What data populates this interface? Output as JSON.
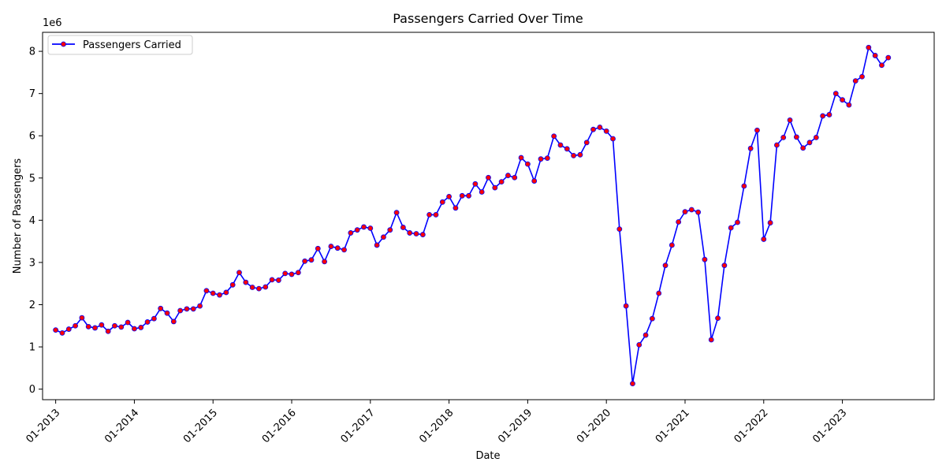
{
  "chart_data": {
    "type": "line",
    "title": "Passengers Carried Over Time",
    "xlabel": "Date",
    "ylabel": "Number of Passengers",
    "y_multiplier_label": "1e6",
    "y_ticks": [
      0,
      1,
      2,
      3,
      4,
      5,
      6,
      7,
      8
    ],
    "ylim": [
      -0.25,
      8.45
    ],
    "x_tick_labels": [
      "01-2013",
      "01-2014",
      "01-2015",
      "01-2016",
      "01-2017",
      "01-2018",
      "01-2019",
      "01-2020",
      "01-2021",
      "01-2022",
      "01-2023"
    ],
    "x_range": [
      "11-2012",
      "03-2024"
    ],
    "grid": false,
    "legend_position": "top-left",
    "line_color": "#0000ff",
    "marker_color": "#ff0000",
    "series": [
      {
        "name": "Passengers Carried",
        "x": [
          "01-2013",
          "02-2013",
          "03-2013",
          "04-2013",
          "05-2013",
          "06-2013",
          "07-2013",
          "08-2013",
          "09-2013",
          "10-2013",
          "11-2013",
          "12-2013",
          "01-2014",
          "02-2014",
          "03-2014",
          "04-2014",
          "05-2014",
          "06-2014",
          "07-2014",
          "08-2014",
          "09-2014",
          "10-2014",
          "11-2014",
          "12-2014",
          "01-2015",
          "02-2015",
          "03-2015",
          "04-2015",
          "05-2015",
          "06-2015",
          "07-2015",
          "08-2015",
          "09-2015",
          "10-2015",
          "11-2015",
          "12-2015",
          "01-2016",
          "02-2016",
          "03-2016",
          "04-2016",
          "05-2016",
          "06-2016",
          "07-2016",
          "08-2016",
          "09-2016",
          "10-2016",
          "11-2016",
          "12-2016",
          "01-2017",
          "02-2017",
          "03-2017",
          "04-2017",
          "05-2017",
          "06-2017",
          "07-2017",
          "08-2017",
          "09-2017",
          "10-2017",
          "11-2017",
          "12-2017",
          "01-2018",
          "02-2018",
          "03-2018",
          "04-2018",
          "05-2018",
          "06-2018",
          "07-2018",
          "08-2018",
          "09-2018",
          "10-2018",
          "11-2018",
          "12-2018",
          "01-2019",
          "02-2019",
          "03-2019",
          "04-2019",
          "05-2019",
          "06-2019",
          "07-2019",
          "08-2019",
          "09-2019",
          "10-2019",
          "11-2019",
          "12-2019",
          "01-2020",
          "02-2020",
          "03-2020",
          "04-2020",
          "05-2020",
          "06-2020",
          "07-2020",
          "08-2020",
          "09-2020",
          "10-2020",
          "11-2020",
          "12-2020",
          "01-2021",
          "02-2021",
          "03-2021",
          "04-2021",
          "05-2021",
          "06-2021",
          "07-2021",
          "08-2021",
          "09-2021",
          "10-2021",
          "11-2021",
          "12-2021",
          "01-2022",
          "02-2022",
          "03-2022",
          "04-2022",
          "05-2022",
          "06-2022",
          "07-2022",
          "08-2022",
          "09-2022",
          "10-2022",
          "11-2022",
          "12-2022",
          "01-2023",
          "02-2023",
          "03-2023",
          "04-2023",
          "05-2023",
          "06-2023",
          "07-2023",
          "08-2023"
        ],
        "values": [
          1.4,
          1.33,
          1.42,
          1.5,
          1.69,
          1.48,
          1.45,
          1.52,
          1.37,
          1.5,
          1.47,
          1.58,
          1.43,
          1.46,
          1.59,
          1.67,
          1.91,
          1.8,
          1.6,
          1.86,
          1.9,
          1.9,
          1.97,
          2.33,
          2.27,
          2.23,
          2.29,
          2.47,
          2.76,
          2.53,
          2.41,
          2.38,
          2.42,
          2.59,
          2.58,
          2.74,
          2.72,
          2.76,
          3.03,
          3.06,
          3.33,
          3.02,
          3.38,
          3.34,
          3.3,
          3.7,
          3.77,
          3.84,
          3.81,
          3.41,
          3.6,
          3.77,
          4.18,
          3.83,
          3.7,
          3.68,
          3.66,
          4.13,
          4.13,
          4.43,
          4.56,
          4.29,
          4.58,
          4.58,
          4.86,
          4.67,
          5.01,
          4.77,
          4.91,
          5.06,
          5.01,
          5.48,
          5.33,
          4.93,
          5.45,
          5.47,
          5.99,
          5.78,
          5.69,
          5.53,
          5.55,
          5.84,
          6.15,
          6.2,
          6.11,
          5.93,
          3.79,
          1.97,
          0.13,
          1.05,
          1.28,
          1.67,
          2.27,
          2.93,
          3.41,
          3.96,
          4.2,
          4.25,
          4.19,
          3.07,
          1.17,
          1.68,
          2.93,
          3.82,
          3.95,
          4.81,
          5.7,
          6.13,
          3.55,
          3.94,
          5.78,
          5.96,
          6.37,
          5.97,
          5.71,
          5.84,
          5.96,
          6.47,
          6.5,
          7.0,
          6.85,
          6.73,
          7.3,
          7.4,
          8.09,
          7.9,
          7.67,
          7.85
        ]
      }
    ]
  }
}
